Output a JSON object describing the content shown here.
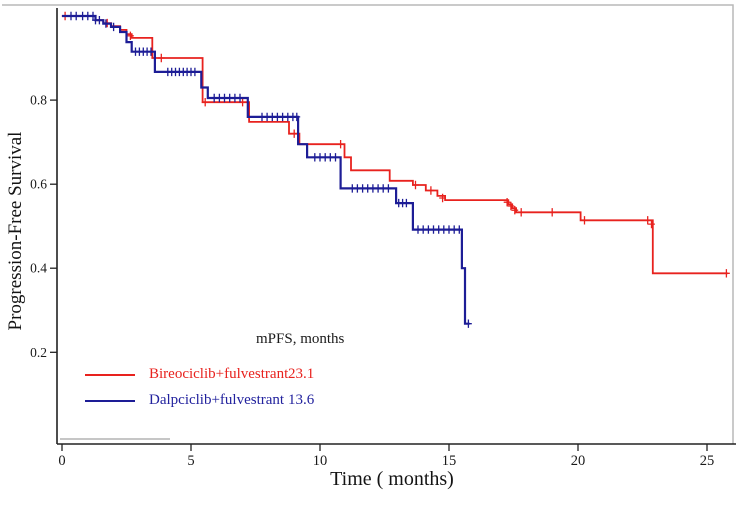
{
  "figure": {
    "x_axis": {
      "label": "Time ( months)",
      "tick_labels": [
        "0",
        "5",
        "10",
        "15",
        "20",
        "25"
      ],
      "tick_values": [
        0,
        5,
        10,
        15,
        20,
        25
      ]
    },
    "y_axis": {
      "label": "Progression-Free Survival",
      "tick_labels": [
        "0.2",
        "0.4",
        "0.6",
        "0.8"
      ],
      "tick_values": [
        0.2,
        0.4,
        0.6,
        0.8
      ]
    },
    "annotation": {
      "header": "mPFS, months"
    },
    "legend": [
      {
        "label": "Bireociclib+fulvestrant",
        "mpfs": "23.1",
        "color": "#e8221e"
      },
      {
        "label": "Dalpciclib+fulvestrant",
        "mpfs": "13.6",
        "color": "#22229e"
      }
    ]
  },
  "chart_data": {
    "type": "line",
    "subtype": "kaplan-meier-step",
    "title": "",
    "xlabel": "Time ( months)",
    "ylabel": "Progression-Free Survival",
    "xlim": [
      0,
      26.2
    ],
    "ylim": [
      0,
      1.02
    ],
    "grid": false,
    "legend_position": "inside-lower-left",
    "series": [
      {
        "name": "Bireociclib+fulvestrant",
        "mPFS_months": 23.1,
        "color": "#e8221e",
        "stroke_width": 1.8,
        "end_t": 25.8,
        "steps": [
          [
            0,
            1.0
          ],
          [
            1.3,
            0.99
          ],
          [
            1.6,
            0.983
          ],
          [
            1.9,
            0.976
          ],
          [
            2.25,
            0.967
          ],
          [
            2.5,
            0.957
          ],
          [
            2.7,
            0.948
          ],
          [
            3.5,
            0.9
          ],
          [
            5.45,
            0.795
          ],
          [
            7.25,
            0.748
          ],
          [
            8.8,
            0.72
          ],
          [
            9.2,
            0.695
          ],
          [
            10.95,
            0.664
          ],
          [
            11.2,
            0.633
          ],
          [
            12.7,
            0.608
          ],
          [
            13.6,
            0.598
          ],
          [
            14.1,
            0.585
          ],
          [
            14.55,
            0.572
          ],
          [
            14.85,
            0.562
          ],
          [
            17.3,
            0.552
          ],
          [
            17.45,
            0.543
          ],
          [
            17.6,
            0.533
          ],
          [
            20.1,
            0.514
          ],
          [
            22.9,
            0.388
          ]
        ],
        "censors": [
          [
            0.12,
            1.0
          ],
          [
            1.75,
            0.983
          ],
          [
            2.65,
            0.953
          ],
          [
            3.85,
            0.9
          ],
          [
            5.55,
            0.795
          ],
          [
            7.0,
            0.795
          ],
          [
            9.0,
            0.72
          ],
          [
            10.8,
            0.695
          ],
          [
            13.7,
            0.598
          ],
          [
            14.3,
            0.585
          ],
          [
            14.75,
            0.567
          ],
          [
            17.25,
            0.557
          ],
          [
            17.4,
            0.548
          ],
          [
            17.55,
            0.538
          ],
          [
            17.8,
            0.533
          ],
          [
            19.0,
            0.533
          ],
          [
            20.25,
            0.514
          ],
          [
            22.7,
            0.514
          ],
          [
            22.85,
            0.505
          ],
          [
            25.75,
            0.388
          ]
        ]
      },
      {
        "name": "Dalpciclib+fulvestrant",
        "mPFS_months": 13.6,
        "color": "#1d1d96",
        "stroke_width": 2.2,
        "end_t": 15.8,
        "steps": [
          [
            0,
            1.0
          ],
          [
            1.3,
            0.99
          ],
          [
            1.6,
            0.982
          ],
          [
            1.9,
            0.974
          ],
          [
            2.25,
            0.962
          ],
          [
            2.5,
            0.938
          ],
          [
            2.7,
            0.915
          ],
          [
            3.6,
            0.867
          ],
          [
            5.4,
            0.83
          ],
          [
            5.65,
            0.805
          ],
          [
            7.2,
            0.76
          ],
          [
            9.15,
            0.695
          ],
          [
            9.5,
            0.664
          ],
          [
            10.8,
            0.59
          ],
          [
            12.95,
            0.555
          ],
          [
            13.6,
            0.492
          ],
          [
            15.5,
            0.4
          ],
          [
            15.62,
            0.268
          ]
        ],
        "censors": [
          [
            0.35,
            1.0
          ],
          [
            0.55,
            1.0
          ],
          [
            0.8,
            1.0
          ],
          [
            1.0,
            1.0
          ],
          [
            1.2,
            1.0
          ],
          [
            1.3,
            0.99
          ],
          [
            1.45,
            0.99
          ],
          [
            1.7,
            0.982
          ],
          [
            2.0,
            0.974
          ],
          [
            2.85,
            0.915
          ],
          [
            3.0,
            0.915
          ],
          [
            3.15,
            0.915
          ],
          [
            3.3,
            0.915
          ],
          [
            3.45,
            0.915
          ],
          [
            4.1,
            0.867
          ],
          [
            4.25,
            0.867
          ],
          [
            4.4,
            0.867
          ],
          [
            4.55,
            0.867
          ],
          [
            4.7,
            0.867
          ],
          [
            4.85,
            0.867
          ],
          [
            5.0,
            0.867
          ],
          [
            5.15,
            0.867
          ],
          [
            5.9,
            0.805
          ],
          [
            6.1,
            0.805
          ],
          [
            6.3,
            0.805
          ],
          [
            6.5,
            0.805
          ],
          [
            6.7,
            0.805
          ],
          [
            6.9,
            0.805
          ],
          [
            7.75,
            0.76
          ],
          [
            7.95,
            0.76
          ],
          [
            8.15,
            0.76
          ],
          [
            8.35,
            0.76
          ],
          [
            8.55,
            0.76
          ],
          [
            8.75,
            0.76
          ],
          [
            8.95,
            0.76
          ],
          [
            9.1,
            0.76
          ],
          [
            9.8,
            0.664
          ],
          [
            10.0,
            0.664
          ],
          [
            10.2,
            0.664
          ],
          [
            10.4,
            0.664
          ],
          [
            10.6,
            0.664
          ],
          [
            11.25,
            0.59
          ],
          [
            11.45,
            0.59
          ],
          [
            11.65,
            0.59
          ],
          [
            11.85,
            0.59
          ],
          [
            12.05,
            0.59
          ],
          [
            12.25,
            0.59
          ],
          [
            12.45,
            0.59
          ],
          [
            12.65,
            0.59
          ],
          [
            13.05,
            0.555
          ],
          [
            13.2,
            0.555
          ],
          [
            13.35,
            0.555
          ],
          [
            13.8,
            0.492
          ],
          [
            14.0,
            0.492
          ],
          [
            14.2,
            0.492
          ],
          [
            14.4,
            0.492
          ],
          [
            14.6,
            0.492
          ],
          [
            14.8,
            0.492
          ],
          [
            15.0,
            0.492
          ],
          [
            15.2,
            0.492
          ],
          [
            15.4,
            0.492
          ],
          [
            15.75,
            0.268
          ]
        ]
      }
    ]
  }
}
